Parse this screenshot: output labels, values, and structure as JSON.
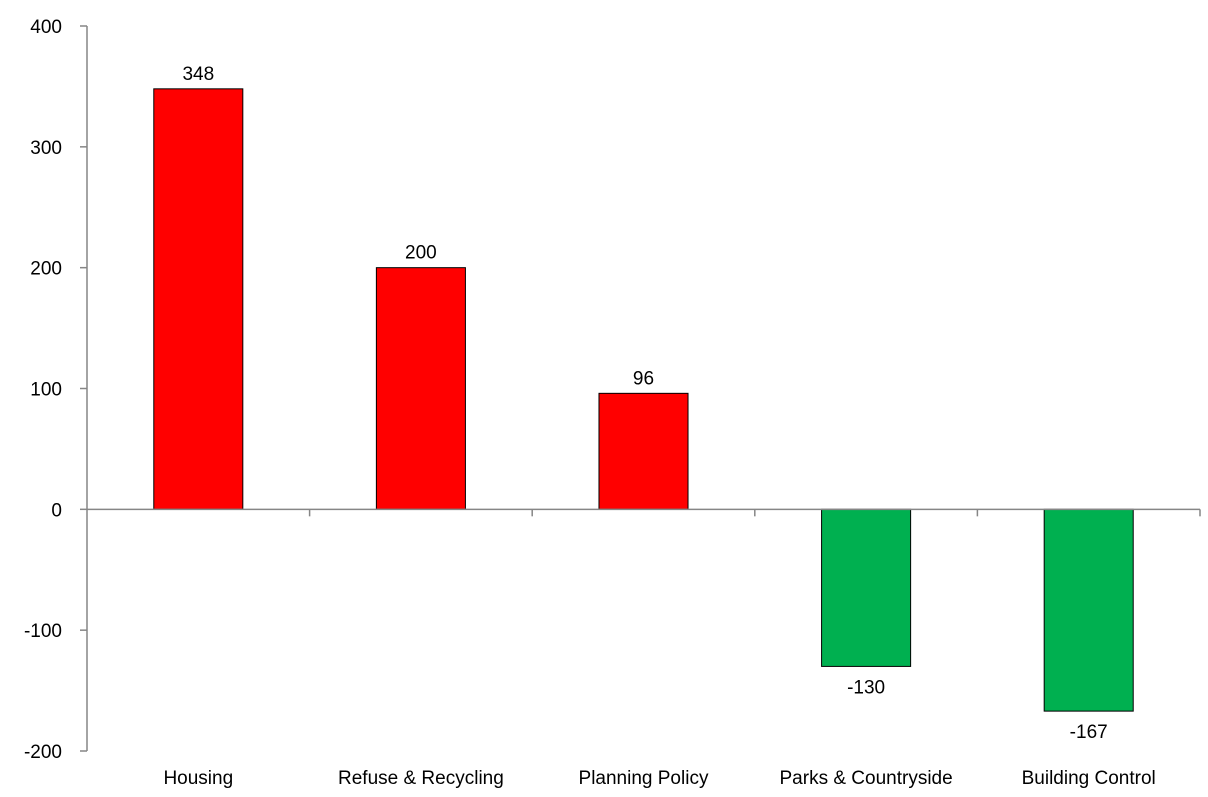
{
  "chart_data": {
    "type": "bar",
    "title": "",
    "xlabel": "",
    "ylabel": "",
    "categories": [
      "Housing",
      "Refuse & Recycling",
      "Planning Policy",
      "Parks & Countryside",
      "Building Control"
    ],
    "values": [
      348,
      200,
      96,
      -130,
      -167
    ],
    "data_labels": [
      "348",
      "200",
      "96",
      "-130",
      "-167"
    ],
    "ylim": [
      -200,
      400
    ],
    "yticks": [
      -200,
      -100,
      0,
      100,
      200,
      300,
      400
    ],
    "ytick_labels": [
      "-200",
      "-100",
      "0",
      "100",
      "200",
      "300",
      "400"
    ],
    "grid": false,
    "legend": "none",
    "colors": {
      "positive": "#ff0000",
      "negative": "#00b050",
      "axis": "#868686",
      "bar_border": "#000000"
    }
  }
}
